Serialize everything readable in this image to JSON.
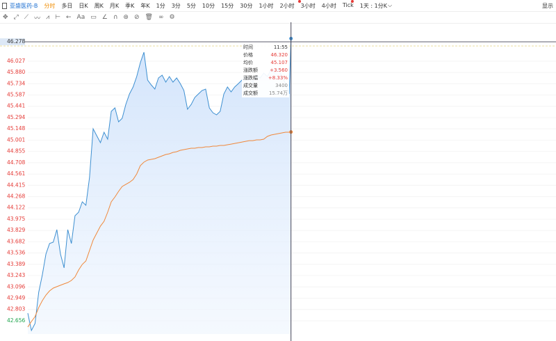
{
  "toolbar": {
    "symbol": "亚盛医药-B",
    "tabs": [
      "分时",
      "多日",
      "日K",
      "周K",
      "月K",
      "季K",
      "年K",
      "1分",
      "3分",
      "5分",
      "10分",
      "15分",
      "30分",
      "1小时",
      "2小时",
      "3小时",
      "4小时",
      "Tick"
    ],
    "active_color": "#f08c00",
    "period": "1天 : 1分K",
    "display": "显示"
  },
  "tooltip": {
    "rows": [
      {
        "label": "时间",
        "value": "11:55",
        "color": "#333333"
      },
      {
        "label": "价格",
        "value": "46.320",
        "color": "#e53935"
      },
      {
        "label": "均价",
        "value": "45.107",
        "color": "#e53935"
      },
      {
        "label": "涨跌额",
        "value": "+3.560",
        "color": "#e53935"
      },
      {
        "label": "涨跌幅",
        "value": "+8.33%",
        "color": "#e53935"
      },
      {
        "label": "成交量",
        "value": "3400",
        "color": "#888888"
      },
      {
        "label": "成交额",
        "value": "15.74万",
        "color": "#888888"
      }
    ]
  },
  "chart_data": {
    "type": "line",
    "x": [
      0,
      2,
      4,
      6,
      8,
      10,
      12,
      14,
      16,
      18,
      20,
      22,
      24,
      26,
      28,
      30,
      32,
      34,
      36,
      38,
      40,
      42,
      44,
      46,
      48,
      50,
      52,
      54,
      56,
      58,
      60,
      62,
      64,
      66,
      68,
      70,
      72,
      74,
      76,
      78,
      80,
      82,
      84,
      86,
      88,
      90,
      92,
      94,
      96,
      98,
      100,
      102,
      104,
      106,
      108,
      110,
      112,
      114,
      116,
      118,
      120,
      122,
      124,
      126,
      128,
      130,
      132,
      134,
      136,
      138,
      140,
      142,
      144,
      145
    ],
    "series": [
      {
        "color": "#3d8fd1",
        "area": true,
        "values": [
          42.755,
          42.53,
          42.62,
          43.026,
          43.252,
          43.523,
          43.659,
          43.677,
          43.839,
          43.523,
          43.343,
          43.839,
          43.659,
          44.02,
          44.065,
          44.201,
          44.155,
          44.517,
          45.149,
          45.059,
          44.969,
          45.104,
          45.014,
          45.375,
          45.42,
          45.24,
          45.285,
          45.465,
          45.601,
          45.691,
          45.827,
          46.007,
          46.143,
          45.782,
          45.718,
          45.664,
          45.809,
          45.845,
          45.755,
          45.827,
          45.755,
          45.809,
          45.736,
          45.646,
          45.402,
          45.465,
          45.556,
          45.601,
          45.646,
          45.664,
          45.42,
          45.357,
          45.33,
          45.375,
          45.601,
          45.691,
          45.628,
          45.691,
          45.736,
          45.782,
          45.827,
          45.809,
          45.755,
          45.845,
          45.809,
          45.872,
          45.827,
          45.917,
          45.872,
          45.935,
          45.827,
          45.736,
          45.601,
          46.32
        ]
      },
      {
        "color": "#f0883a",
        "area": false,
        "values": [
          42.575,
          42.647,
          42.71,
          42.828,
          42.918,
          42.99,
          43.044,
          43.08,
          43.099,
          43.117,
          43.135,
          43.153,
          43.18,
          43.225,
          43.315,
          43.388,
          43.433,
          43.568,
          43.704,
          43.794,
          43.885,
          43.948,
          44.065,
          44.201,
          44.264,
          44.336,
          44.399,
          44.427,
          44.454,
          44.49,
          44.562,
          44.67,
          44.716,
          44.743,
          44.752,
          44.761,
          44.779,
          44.797,
          44.815,
          44.824,
          44.842,
          44.851,
          44.869,
          44.878,
          44.887,
          44.896,
          44.896,
          44.905,
          44.905,
          44.914,
          44.914,
          44.923,
          44.923,
          44.932,
          44.932,
          44.941,
          44.95,
          44.959,
          44.968,
          44.977,
          44.986,
          44.995,
          44.995,
          45.005,
          45.005,
          45.014,
          45.05,
          45.068,
          45.077,
          45.086,
          45.095,
          45.104,
          45.104,
          45.107
        ]
      }
    ],
    "xlim": [
      0,
      291
    ],
    "ylim": [
      42.484,
      46.387
    ],
    "yticks": [
      46.027,
      {
        "value": 45.88,
        "label": "45.880"
      },
      45.734,
      45.587,
      45.441,
      45.294,
      45.148,
      45.001,
      44.855,
      44.708,
      44.561,
      44.415,
      44.268,
      44.122,
      43.975,
      43.829,
      43.682,
      43.536,
      43.389,
      43.243,
      43.096,
      42.949,
      42.803,
      42.656
    ],
    "ytick_colors": [
      "#e53935",
      "#e53935",
      "#e53935",
      "#e53935",
      "#e53935",
      "#e53935",
      "#e53935",
      "#e53935",
      "#e53935",
      "#e53935",
      "#e53935",
      "#e53935",
      "#e53935",
      "#e53935",
      "#e53935",
      "#e53935",
      "#e53935",
      "#e53935",
      "#e53935",
      "#e53935",
      "#e53935",
      "#e53935",
      "#e53935",
      "#1aa34a"
    ],
    "crosshair": 46.278,
    "grid": true
  }
}
